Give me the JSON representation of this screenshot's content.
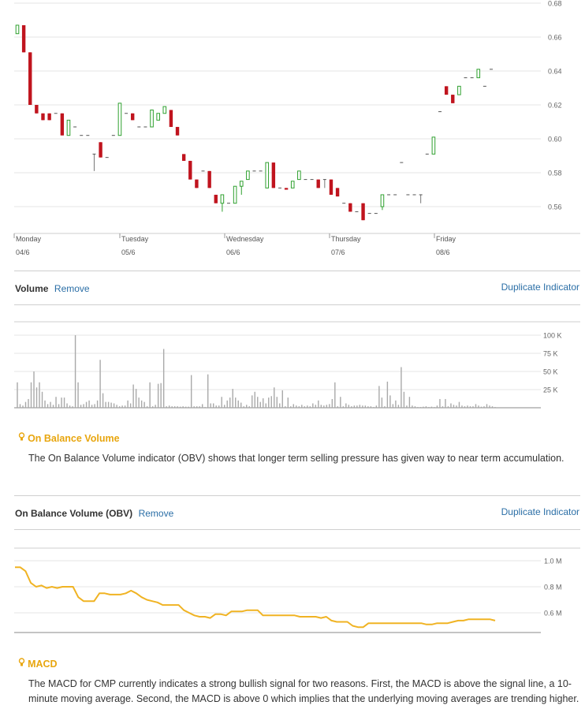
{
  "price_chart": {
    "chart_data": {
      "type": "candlestick",
      "y_ticks": [
        "0.68",
        "0.66",
        "0.64",
        "0.62",
        "0.60",
        "0.58",
        "0.56"
      ],
      "ylim": [
        0.545,
        0.68
      ],
      "x_labels": [
        {
          "day": "Monday",
          "date": "04/6"
        },
        {
          "day": "Tuesday",
          "date": "05/6"
        },
        {
          "day": "Wednesday",
          "date": "06/6"
        },
        {
          "day": "Thursday",
          "date": "07/6"
        },
        {
          "day": "Friday",
          "date": "08/6"
        }
      ],
      "candles": [
        [
          0.662,
          0.667,
          0.662,
          0.667
        ],
        [
          0.667,
          0.667,
          0.651,
          0.651
        ],
        [
          0.651,
          0.651,
          0.62,
          0.62
        ],
        [
          0.62,
          0.62,
          0.615,
          0.615
        ],
        [
          0.615,
          0.615,
          0.611,
          0.611
        ],
        [
          0.615,
          0.615,
          0.611,
          0.611
        ],
        [
          0.615,
          0.615,
          0.615,
          0.615
        ],
        [
          0.615,
          0.615,
          0.602,
          0.602
        ],
        [
          0.602,
          0.611,
          0.602,
          0.611
        ],
        [
          0.607,
          0.607,
          0.607,
          0.607
        ],
        [
          0.602,
          0.602,
          0.602,
          0.602
        ],
        [
          0.602,
          0.602,
          0.602,
          0.602
        ],
        [
          0.591,
          0.591,
          0.581,
          0.591
        ],
        [
          0.598,
          0.598,
          0.589,
          0.589
        ],
        [
          0.589,
          0.589,
          0.589,
          0.589
        ],
        [
          0.602,
          0.602,
          0.602,
          0.602
        ],
        [
          0.602,
          0.621,
          0.602,
          0.621
        ],
        [
          0.615,
          0.615,
          0.615,
          0.615
        ],
        [
          0.615,
          0.615,
          0.611,
          0.611
        ],
        [
          0.607,
          0.607,
          0.607,
          0.607
        ],
        [
          0.607,
          0.607,
          0.607,
          0.607
        ],
        [
          0.607,
          0.617,
          0.607,
          0.617
        ],
        [
          0.611,
          0.615,
          0.611,
          0.615
        ],
        [
          0.615,
          0.619,
          0.615,
          0.619
        ],
        [
          0.617,
          0.617,
          0.607,
          0.607
        ],
        [
          0.607,
          0.607,
          0.602,
          0.602
        ],
        [
          0.591,
          0.591,
          0.587,
          0.587
        ],
        [
          0.587,
          0.587,
          0.576,
          0.576
        ],
        [
          0.576,
          0.576,
          0.571,
          0.571
        ],
        [
          0.581,
          0.581,
          0.581,
          0.581
        ],
        [
          0.581,
          0.581,
          0.571,
          0.571
        ],
        [
          0.567,
          0.567,
          0.562,
          0.562
        ],
        [
          0.562,
          0.567,
          0.557,
          0.567
        ],
        [
          0.562,
          0.562,
          0.562,
          0.562
        ],
        [
          0.562,
          0.572,
          0.562,
          0.572
        ],
        [
          0.572,
          0.575,
          0.567,
          0.575
        ],
        [
          0.576,
          0.581,
          0.576,
          0.581
        ],
        [
          0.581,
          0.581,
          0.581,
          0.581
        ],
        [
          0.581,
          0.581,
          0.581,
          0.581
        ],
        [
          0.571,
          0.586,
          0.571,
          0.586
        ],
        [
          0.586,
          0.586,
          0.571,
          0.571
        ],
        [
          0.571,
          0.571,
          0.571,
          0.571
        ],
        [
          0.571,
          0.571,
          0.57,
          0.57
        ],
        [
          0.571,
          0.575,
          0.571,
          0.575
        ],
        [
          0.576,
          0.581,
          0.576,
          0.581
        ],
        [
          0.576,
          0.576,
          0.576,
          0.576
        ],
        [
          0.576,
          0.576,
          0.576,
          0.576
        ],
        [
          0.576,
          0.576,
          0.571,
          0.571
        ],
        [
          0.576,
          0.576,
          0.571,
          0.576
        ],
        [
          0.576,
          0.576,
          0.567,
          0.567
        ],
        [
          0.571,
          0.571,
          0.566,
          0.566
        ],
        [
          0.562,
          0.562,
          0.562,
          0.562
        ],
        [
          0.562,
          0.562,
          0.557,
          0.557
        ],
        [
          0.557,
          0.557,
          0.557,
          0.557
        ],
        [
          0.562,
          0.562,
          0.552,
          0.552
        ],
        [
          0.556,
          0.556,
          0.556,
          0.556
        ],
        [
          0.556,
          0.556,
          0.556,
          0.556
        ],
        [
          0.56,
          0.567,
          0.558,
          0.567
        ],
        [
          0.567,
          0.567,
          0.567,
          0.567
        ],
        [
          0.567,
          0.567,
          0.567,
          0.567
        ],
        [
          0.586,
          0.586,
          0.586,
          0.586
        ],
        [
          0.567,
          0.567,
          0.567,
          0.567
        ],
        [
          0.567,
          0.567,
          0.567,
          0.567
        ],
        [
          0.567,
          0.567,
          0.562,
          0.567
        ],
        [
          0.591,
          0.591,
          0.591,
          0.591
        ],
        [
          0.591,
          0.601,
          0.591,
          0.601
        ],
        [
          0.616,
          0.616,
          0.616,
          0.616
        ],
        [
          0.631,
          0.631,
          0.626,
          0.626
        ],
        [
          0.626,
          0.626,
          0.621,
          0.621
        ],
        [
          0.626,
          0.631,
          0.626,
          0.631
        ],
        [
          0.636,
          0.636,
          0.636,
          0.636
        ],
        [
          0.636,
          0.636,
          0.636,
          0.636
        ],
        [
          0.636,
          0.641,
          0.636,
          0.641
        ],
        [
          0.631,
          0.631,
          0.631,
          0.631
        ],
        [
          0.641,
          0.641,
          0.641,
          0.641
        ]
      ]
    }
  },
  "volume_section": {
    "title": "Volume",
    "remove_label": "Remove",
    "duplicate_label": "Duplicate Indicator",
    "chart_data": {
      "type": "bar",
      "y_ticks": [
        "100 K",
        "75 K",
        "50 K",
        "25 K"
      ],
      "ylim": [
        0,
        110000
      ],
      "values": [
        35000,
        5000,
        3000,
        8000,
        12000,
        35000,
        50000,
        28000,
        35000,
        22000,
        10000,
        5000,
        8000,
        4000,
        15000,
        5000,
        14000,
        14000,
        6000,
        3000,
        2000,
        100000,
        35000,
        4000,
        5000,
        8000,
        10000,
        4000,
        5000,
        10000,
        66000,
        20000,
        8000,
        8000,
        7000,
        6000,
        4000,
        2000,
        3000,
        3000,
        10000,
        6000,
        32000,
        26000,
        14000,
        10000,
        8000,
        2000,
        35000,
        2000,
        4000,
        33000,
        34000,
        81000,
        2000,
        3000,
        2000,
        2000,
        2000,
        1500,
        2000,
        1500,
        1500,
        45000,
        2000,
        2000,
        2000,
        5000,
        1000,
        46000,
        6000,
        6000,
        3000,
        3000,
        15000,
        4000,
        10000,
        14000,
        26000,
        14000,
        10000,
        7000,
        2000,
        4000,
        2000,
        17000,
        22000,
        15000,
        8000,
        13000,
        6000,
        14000,
        16000,
        28000,
        15000,
        6000,
        24000,
        2000,
        14000,
        2000,
        5000,
        3000,
        2000,
        4000,
        2000,
        3000,
        2000,
        6000,
        4000,
        10000,
        4000,
        3000,
        4000,
        5000,
        12000,
        35000,
        2000,
        15000,
        2000,
        6000,
        4000,
        2000,
        3000,
        3000,
        4000,
        3000,
        3000,
        2000,
        2000,
        1000,
        3000,
        30000,
        14000,
        2000,
        36000,
        17000,
        5000,
        10000,
        4000,
        56000,
        22000,
        3000,
        15000,
        3000,
        2000,
        1000,
        1000,
        1500,
        2000,
        1000,
        1500,
        1000,
        3000,
        12000,
        2000,
        12000,
        2000,
        6000,
        4000,
        3000,
        8000,
        3000,
        2000,
        3000,
        2000,
        2000,
        5000,
        3000,
        1500,
        2000,
        5000,
        3000,
        2000,
        1000
      ]
    }
  },
  "obv_insight": {
    "title": "On Balance Volume",
    "text": "The On Balance Volume indicator (OBV) shows that longer term selling pressure has given way to near term accumulation."
  },
  "obv_section": {
    "title": "On Balance Volume (OBV)",
    "remove_label": "Remove",
    "duplicate_label": "Duplicate Indicator",
    "chart_data": {
      "type": "line",
      "y_ticks": [
        "1.0 M",
        "0.8 M",
        "0.6 M"
      ],
      "ylim": [
        0.45,
        1.1
      ],
      "color": "#f0b323",
      "values": [
        0.95,
        0.95,
        0.92,
        0.83,
        0.8,
        0.81,
        0.79,
        0.8,
        0.79,
        0.8,
        0.8,
        0.8,
        0.72,
        0.69,
        0.69,
        0.69,
        0.75,
        0.75,
        0.74,
        0.74,
        0.74,
        0.75,
        0.77,
        0.75,
        0.72,
        0.7,
        0.69,
        0.68,
        0.66,
        0.66,
        0.66,
        0.66,
        0.62,
        0.6,
        0.58,
        0.57,
        0.57,
        0.56,
        0.59,
        0.59,
        0.58,
        0.61,
        0.61,
        0.61,
        0.62,
        0.62,
        0.62,
        0.58,
        0.58,
        0.58,
        0.58,
        0.58,
        0.58,
        0.58,
        0.57,
        0.57,
        0.57,
        0.57,
        0.56,
        0.57,
        0.54,
        0.53,
        0.53,
        0.53,
        0.5,
        0.49,
        0.49,
        0.52,
        0.52,
        0.52,
        0.52,
        0.52,
        0.52,
        0.52,
        0.52,
        0.52,
        0.52,
        0.52,
        0.51,
        0.51,
        0.52,
        0.52,
        0.52,
        0.53,
        0.54,
        0.54,
        0.55,
        0.55,
        0.55,
        0.55,
        0.55,
        0.54
      ]
    }
  },
  "macd_insight": {
    "title": "MACD",
    "text": "The MACD for CMP currently indicates a strong bullish signal for two reasons. First, the MACD is above the signal line, a 10-minute moving average. Second, the MACD is above 0 which implies that the underlying moving averages are trending higher."
  },
  "colors": {
    "up": "#2ea02e",
    "down": "#c0141e",
    "neutral": "#aaaaaa",
    "accent": "#e8a60f",
    "link": "#2a6ea6"
  },
  "icons": {
    "insight": "lightbulb-icon"
  }
}
